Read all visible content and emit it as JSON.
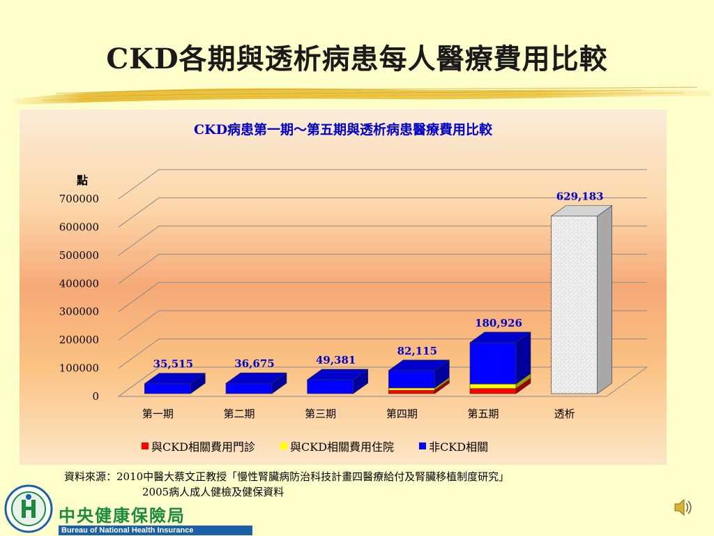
{
  "slide": {
    "title": "CKD各期與透析病患每人醫療費用比較",
    "source_line1": "資料來源：2010中醫大蔡文正教授「慢性腎臟病防治科技計畫四醫療給付及腎臟移植制度研究」",
    "source_line2": "2005病人成人健檢及健保資料",
    "org_name_cn": "中央健康保險局",
    "org_name_en": "Bureau of National Health Insurance",
    "logo_icon": "nhi-logo-icon",
    "speaker_icon": "speaker-icon"
  },
  "chart_data": {
    "type": "bar",
    "stacked": true,
    "three_d": true,
    "title": "CKD病患第一期～第五期與透析病患醫療費用比較",
    "ylabel": "點",
    "xlabel": "",
    "ylim": [
      0,
      700000
    ],
    "yticks": [
      "0",
      "100000",
      "200000",
      "300000",
      "400000",
      "500000",
      "600000",
      "700000"
    ],
    "grid": true,
    "legend_position": "bottom",
    "categories": [
      "第一期",
      "第二期",
      "第三期",
      "第四期",
      "第五期",
      "透析"
    ],
    "totals": [
      35515,
      36675,
      49381,
      82115,
      180926,
      629183
    ],
    "total_labels": [
      "35,515",
      "36,675",
      "49,381",
      "82,115",
      "180,926",
      "629,183"
    ],
    "series": [
      {
        "name": "與CKD相關費用門診",
        "color": "#ff0000",
        "values": [
          0,
          0,
          0,
          12000,
          18000,
          0
        ]
      },
      {
        "name": "與CKD相關費用住院",
        "color": "#ffff00",
        "values": [
          0,
          0,
          0,
          8000,
          16000,
          0
        ]
      },
      {
        "name": "非CKD相關",
        "color": "#0000ff",
        "values": [
          35515,
          36675,
          49381,
          62115,
          146926,
          0
        ]
      },
      {
        "name": "",
        "color": "#e6e6e6",
        "values": [
          0,
          0,
          0,
          0,
          0,
          629183
        ]
      }
    ]
  }
}
